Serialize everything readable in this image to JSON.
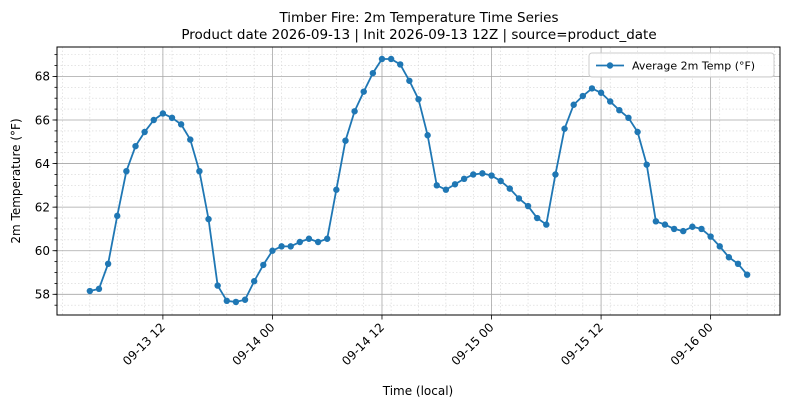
{
  "chart_data": {
    "type": "line",
    "title": "Timber Fire: 2m Temperature Time Series",
    "subtitle": "Product date 2026-09-13 | Init 2026-09-13 12Z | source=product_date",
    "xlabel": "Time (local)",
    "ylabel": "2m Temperature (°F)",
    "x_start": "2026-09-13 04:00",
    "x_step_hours": 1,
    "x_ticks": [
      {
        "hour": 8,
        "label": "09-13 12"
      },
      {
        "hour": 20,
        "label": "09-14 00"
      },
      {
        "hour": 32,
        "label": "09-14 12"
      },
      {
        "hour": 44,
        "label": "09-15 00"
      },
      {
        "hour": 56,
        "label": "09-15 12"
      },
      {
        "hour": 68,
        "label": "09-16 00"
      }
    ],
    "xlim": [
      -3.6,
      75.6
    ],
    "ylim": [
      57.05,
      69.35
    ],
    "y_ticks": [
      58,
      60,
      62,
      64,
      66,
      68
    ],
    "grid": true,
    "legend_position": "top-right",
    "series": [
      {
        "name": "Average 2m Temp (°F)",
        "color": "#1f77b4",
        "values": [
          58.15,
          58.25,
          59.4,
          61.6,
          63.65,
          64.8,
          65.45,
          66.0,
          66.3,
          66.1,
          65.8,
          65.1,
          63.65,
          61.45,
          58.4,
          57.7,
          57.65,
          57.75,
          58.6,
          59.35,
          60.0,
          60.2,
          60.2,
          60.4,
          60.55,
          60.4,
          60.55,
          62.8,
          65.05,
          66.4,
          67.3,
          68.15,
          68.8,
          68.8,
          68.55,
          67.8,
          66.95,
          65.3,
          63.0,
          62.8,
          63.05,
          63.3,
          63.5,
          63.55,
          63.45,
          63.2,
          62.85,
          62.4,
          62.05,
          61.5,
          61.2,
          63.5,
          65.6,
          66.7,
          67.1,
          67.45,
          67.25,
          66.85,
          66.45,
          66.1,
          65.45,
          63.95,
          61.35,
          61.2,
          61.0,
          60.9,
          61.1,
          61.0,
          60.65,
          60.2,
          59.7,
          59.4,
          58.9
        ]
      }
    ]
  }
}
